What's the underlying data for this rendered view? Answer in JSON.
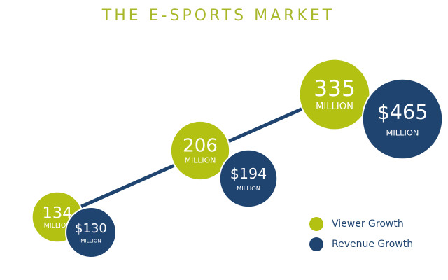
{
  "chart_data": {
    "type": "bubble",
    "title": "THE E-SPORTS MARKET",
    "unit_label": "MILLION",
    "series": [
      {
        "name": "Viewer Growth",
        "color": "#b3c112",
        "values": [
          134,
          206,
          335
        ]
      },
      {
        "name": "Revenue Growth",
        "color": "#1f4470",
        "values": [
          130,
          194,
          465
        ],
        "value_labels": [
          "$130",
          "$194",
          "$465"
        ]
      }
    ]
  }
}
